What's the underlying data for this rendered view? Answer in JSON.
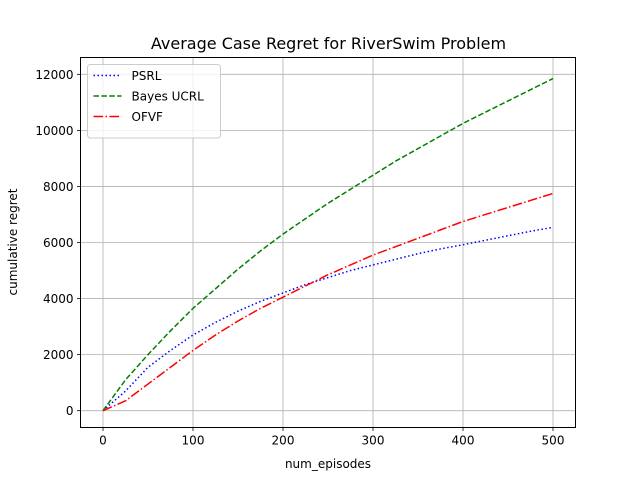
{
  "chart_data": {
    "type": "line",
    "title": "Average Case Regret for RiverSwim Problem",
    "xlabel": "num_episodes",
    "ylabel": "cumulative regret",
    "xlim": [
      -25,
      525
    ],
    "ylim": [
      -600,
      12600
    ],
    "xticks": [
      0,
      100,
      200,
      300,
      400,
      500
    ],
    "yticks": [
      0,
      2000,
      4000,
      6000,
      8000,
      10000,
      12000
    ],
    "grid": true,
    "legend_position": "top-left",
    "x": [
      0,
      25,
      50,
      75,
      100,
      125,
      150,
      175,
      200,
      225,
      250,
      275,
      300,
      325,
      350,
      375,
      400,
      425,
      450,
      475,
      500
    ],
    "series": [
      {
        "name": "PSRL",
        "color": "#0000ff",
        "dash": "dotted",
        "values": [
          0,
          700,
          1550,
          2150,
          2700,
          3150,
          3550,
          3900,
          4200,
          4500,
          4750,
          5000,
          5200,
          5400,
          5600,
          5770,
          5920,
          6080,
          6240,
          6400,
          6540
        ]
      },
      {
        "name": "Bayes UCRL",
        "color": "#008000",
        "dash": "dashed",
        "values": [
          0,
          1100,
          2000,
          2850,
          3650,
          4350,
          5050,
          5700,
          6300,
          6850,
          7400,
          7900,
          8400,
          8900,
          9350,
          9800,
          10250,
          10650,
          11050,
          11450,
          11850
        ]
      },
      {
        "name": "OFVF",
        "color": "#ff0000",
        "dash": "dashdot",
        "values": [
          0,
          350,
          950,
          1550,
          2150,
          2700,
          3200,
          3650,
          4050,
          4450,
          4850,
          5200,
          5550,
          5850,
          6150,
          6450,
          6750,
          7000,
          7250,
          7500,
          7750
        ]
      }
    ]
  }
}
